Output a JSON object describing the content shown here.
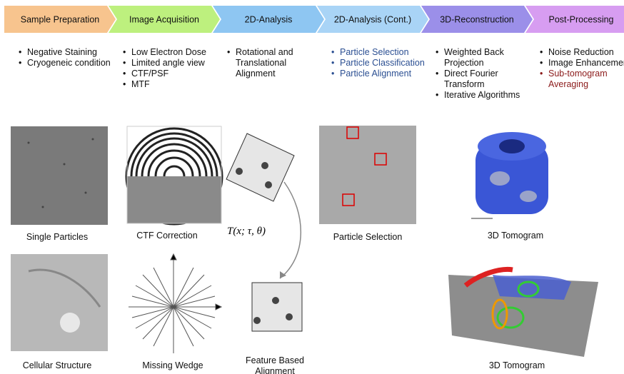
{
  "stages": [
    {
      "title": "Sample Preparation",
      "color": "#f7c48e",
      "bullets": [
        {
          "text": "Negative Staining"
        },
        {
          "text": "Cryogeneic condition"
        }
      ]
    },
    {
      "title": "Image Acquisition",
      "color": "#bdf07e",
      "bullets": [
        {
          "text": "Low Electron Dose"
        },
        {
          "text": "Limited angle view"
        },
        {
          "text": "CTF/PSF"
        },
        {
          "text": "MTF"
        }
      ]
    },
    {
      "title": "2D-Analysis",
      "color": "#8ec6f2",
      "bullets": [
        {
          "text": "Rotational and Translational Alignment"
        }
      ]
    },
    {
      "title": "2D-Analysis (Cont.)",
      "color": "#a9d4f6",
      "bullets": [
        {
          "text": "Particle Selection",
          "color": "#2b4f92"
        },
        {
          "text": "Particle Classification",
          "color": "#2b4f92"
        },
        {
          "text": "Particle Alignment",
          "color": "#2b4f92"
        }
      ]
    },
    {
      "title": "3D-Reconstruction",
      "color": "#9b8fe9",
      "bullets": [
        {
          "text": "Weighted Back Projection"
        },
        {
          "text": "Direct Fourier Transform"
        },
        {
          "text": "Iterative Algorithms"
        }
      ]
    },
    {
      "title": "Post-Processing",
      "color": "#d79df1",
      "bullets": [
        {
          "text": "Noise Reduction"
        },
        {
          "text": "Image Enhancement"
        },
        {
          "text": "Sub-tomogram Averaging",
          "color": "#8b1a1a"
        }
      ]
    }
  ],
  "panels": [
    {
      "caption": "Single Particles"
    },
    {
      "caption": "CTF Correction"
    },
    {
      "caption": "Particle Selection"
    },
    {
      "caption": "3D Tomogram"
    },
    {
      "caption": "Cellular Structure"
    },
    {
      "caption": "Missing Wedge"
    },
    {
      "caption": "Feature Based Alignment"
    },
    {
      "caption": "3D Tomogram"
    }
  ],
  "formula": "T(x; τ, θ)"
}
